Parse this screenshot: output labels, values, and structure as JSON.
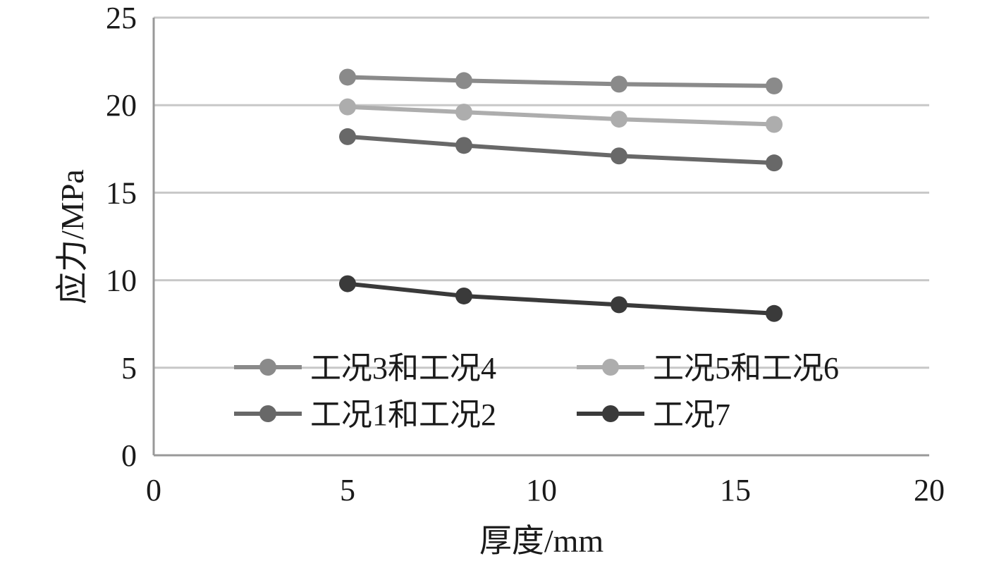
{
  "chart_data": {
    "type": "line",
    "title": "",
    "xlabel": "厚度/mm",
    "ylabel": "应力/MPa",
    "xlim": [
      0,
      20
    ],
    "ylim": [
      0,
      25
    ],
    "xticks": [
      0,
      5,
      10,
      15,
      20
    ],
    "yticks": [
      0,
      5,
      10,
      15,
      20,
      25
    ],
    "grid": "horizontal",
    "legend_position": "inside-bottom",
    "x": [
      5,
      8,
      12,
      16
    ],
    "series": [
      {
        "name": "工况3和工况4",
        "values": [
          21.6,
          21.4,
          21.2,
          21.1
        ],
        "color": "#8a8a8a"
      },
      {
        "name": "工况5和工况6",
        "values": [
          19.9,
          19.6,
          19.2,
          18.9
        ],
        "color": "#adadad"
      },
      {
        "name": "工况1和工况2",
        "values": [
          18.2,
          17.7,
          17.1,
          16.7
        ],
        "color": "#686868"
      },
      {
        "name": "工况7",
        "values": [
          9.8,
          9.1,
          8.6,
          8.1
        ],
        "color": "#3a3a3a"
      }
    ]
  }
}
